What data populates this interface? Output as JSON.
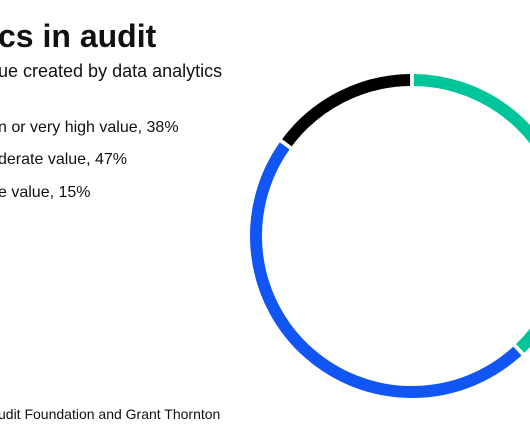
{
  "header": {
    "title": "cs in audit",
    "subtitle": "ue created by data analytics"
  },
  "legend": [
    {
      "label": "n or very high value, 38%"
    },
    {
      "label": "derate value, 47%"
    },
    {
      "label": "e value, 15%"
    }
  ],
  "footer": {
    "source": "udit Foundation and Grant Thornton"
  },
  "chart_data": {
    "type": "pie",
    "style": "donut",
    "title": "",
    "series": [
      {
        "label": "High or very high value",
        "value": 38,
        "color": "#00c49a"
      },
      {
        "label": "Moderate value",
        "value": 47,
        "color": "#1155f5"
      },
      {
        "label": "Little value",
        "value": 15,
        "color": "#000000"
      }
    ],
    "start_angle_deg": 0,
    "direction": "clockwise",
    "gap_color": "#ffffff"
  }
}
